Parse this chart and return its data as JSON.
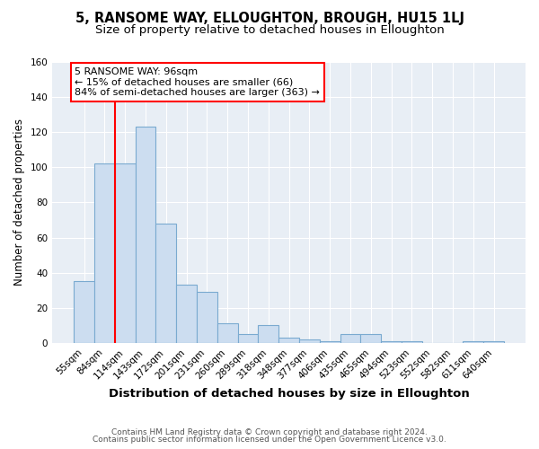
{
  "title": "5, RANSOME WAY, ELLOUGHTON, BROUGH, HU15 1LJ",
  "subtitle": "Size of property relative to detached houses in Elloughton",
  "xlabel": "Distribution of detached houses by size in Elloughton",
  "ylabel": "Number of detached properties",
  "categories": [
    "55sqm",
    "84sqm",
    "114sqm",
    "143sqm",
    "172sqm",
    "201sqm",
    "231sqm",
    "260sqm",
    "289sqm",
    "318sqm",
    "348sqm",
    "377sqm",
    "406sqm",
    "435sqm",
    "465sqm",
    "494sqm",
    "523sqm",
    "552sqm",
    "582sqm",
    "611sqm",
    "640sqm"
  ],
  "values": [
    35,
    102,
    102,
    123,
    68,
    33,
    29,
    11,
    5,
    10,
    3,
    2,
    1,
    5,
    5,
    1,
    1,
    0,
    0,
    1,
    1
  ],
  "bar_color": "#ccddf0",
  "bar_edge_color": "#7aaad0",
  "red_line_index": 1.5,
  "annotation_line1": "5 RANSOME WAY: 96sqm",
  "annotation_line2": "← 15% of detached houses are smaller (66)",
  "annotation_line3": "84% of semi-detached houses are larger (363) →",
  "ylim": [
    0,
    160
  ],
  "yticks": [
    0,
    20,
    40,
    60,
    80,
    100,
    120,
    140,
    160
  ],
  "footnote1": "Contains HM Land Registry data © Crown copyright and database right 2024.",
  "footnote2": "Contains public sector information licensed under the Open Government Licence v3.0.",
  "bg_color": "#ffffff",
  "plot_bg_color": "#e8eef5",
  "title_fontsize": 10.5,
  "subtitle_fontsize": 9.5,
  "xlabel_fontsize": 9.5,
  "ylabel_fontsize": 8.5,
  "tick_fontsize": 7.5,
  "annotation_fontsize": 8,
  "footnote_fontsize": 6.5
}
